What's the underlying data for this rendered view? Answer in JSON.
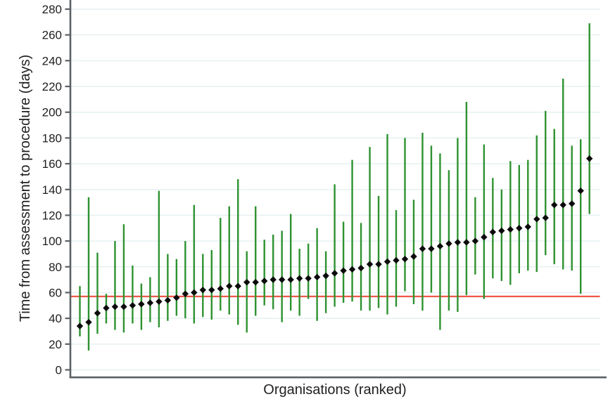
{
  "chart_data": {
    "type": "scatter",
    "subtype": "caterpillar-plot-means-with-95pct-ci",
    "title": "",
    "xlabel": "Organisations (ranked)",
    "ylabel": "Time from assessment to procedure (days)",
    "n_organisations": 59,
    "ylim": [
      0,
      287
    ],
    "yticks": [
      0,
      20,
      40,
      60,
      80,
      100,
      120,
      140,
      160,
      180,
      200,
      220,
      240,
      260,
      280
    ],
    "xticks": [],
    "grid": {
      "horizontal": true,
      "vertical": false
    },
    "legend": "none",
    "reference_line": {
      "y": 57
    },
    "series": [
      {
        "name": "mean-time-days",
        "marker": "diamond",
        "values": [
          34,
          37,
          44,
          48,
          49,
          49,
          50,
          51,
          52,
          53,
          54,
          56,
          59,
          60,
          62,
          62,
          63,
          65,
          65,
          68,
          68,
          69,
          70,
          70,
          70,
          71,
          71,
          72,
          73,
          75,
          77,
          78,
          79,
          82,
          82,
          84,
          85,
          86,
          88,
          94,
          94,
          96,
          98,
          99,
          99,
          100,
          103,
          107,
          108,
          109,
          110,
          111,
          117,
          118,
          128,
          128,
          129,
          139,
          164
        ]
      },
      {
        "name": "ci-lower-bound",
        "values": [
          26,
          15,
          28,
          36,
          31,
          29,
          36,
          31,
          37,
          33,
          38,
          42,
          40,
          36,
          41,
          39,
          46,
          43,
          35,
          29,
          42,
          50,
          47,
          37,
          46,
          42,
          55,
          38,
          44,
          49,
          52,
          53,
          46,
          46,
          48,
          43,
          49,
          61,
          51,
          46,
          60,
          31,
          46,
          45,
          58,
          74,
          55,
          71,
          69,
          66,
          75,
          77,
          76,
          89,
          82,
          78,
          77,
          59,
          121
        ]
      },
      {
        "name": "ci-upper-bound",
        "values": [
          65,
          134,
          91,
          59,
          100,
          113,
          81,
          67,
          72,
          139,
          90,
          86,
          100,
          128,
          90,
          93,
          118,
          127,
          148,
          92,
          127,
          101,
          105,
          108,
          121,
          94,
          98,
          110,
          92,
          144,
          115,
          163,
          114,
          173,
          135,
          183,
          124,
          180,
          132,
          184,
          174,
          168,
          155,
          180,
          208,
          134,
          175,
          149,
          140,
          162,
          159,
          163,
          182,
          201,
          187,
          226,
          174,
          179,
          269
        ]
      }
    ]
  },
  "colors": {
    "marker": "#0b0b0b",
    "ci_bar": "#2e9230",
    "reference_line": "#f0564b",
    "gridline": "#e7f0f2",
    "axis": "#5c6165",
    "text": "#1f1f1f",
    "background": "#ffffff"
  }
}
